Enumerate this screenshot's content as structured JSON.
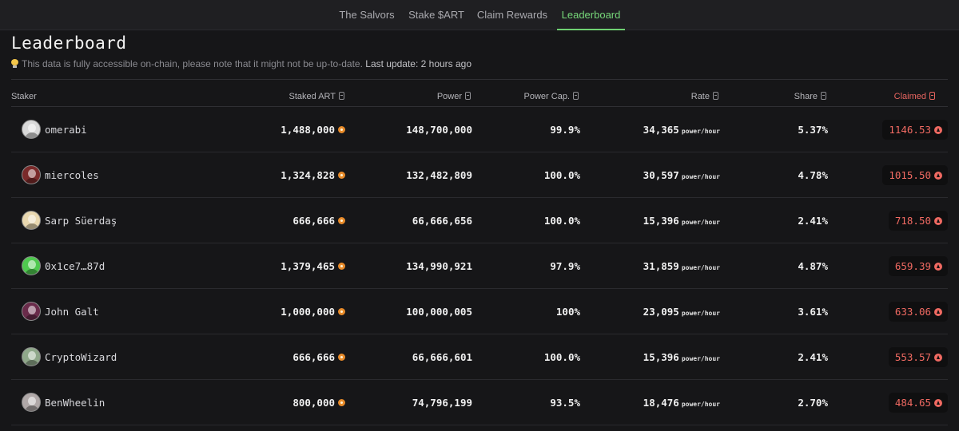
{
  "nav": {
    "tabs": [
      {
        "label": "The Salvors",
        "active": false
      },
      {
        "label": "Stake $ART",
        "active": false
      },
      {
        "label": "Claim Rewards",
        "active": false
      },
      {
        "label": "Leaderboard",
        "active": true
      }
    ]
  },
  "page": {
    "title": "Leaderboard",
    "notice": "This data is fully accessible on-chain, please note that it might not be up-to-date.",
    "last_update": "Last update: 2 hours ago"
  },
  "table": {
    "columns": {
      "staker": "Staker",
      "staked": "Staked ART",
      "power": "Power",
      "power_cap": "Power Cap.",
      "rate": "Rate",
      "share": "Share",
      "claimed": "Claimed"
    },
    "rate_unit": "power/hour",
    "rows": [
      {
        "staker": "omerabi",
        "staked": "1,488,000",
        "power": "148,700,000",
        "power_cap": "99.9%",
        "rate": "34,365",
        "share": "5.37%",
        "claimed": "1146.53",
        "avatar_color": "#d9d9d9"
      },
      {
        "staker": "miercoles",
        "staked": "1,324,828",
        "power": "132,482,809",
        "power_cap": "100.0%",
        "rate": "30,597",
        "share": "4.78%",
        "claimed": "1015.50",
        "avatar_color": "#7a2a2a"
      },
      {
        "staker": "Sarp Süerdaş",
        "staked": "666,666",
        "power": "66,666,656",
        "power_cap": "100.0%",
        "rate": "15,396",
        "share": "2.41%",
        "claimed": "718.50",
        "avatar_color": "#e9d8b0"
      },
      {
        "staker": "0x1ce7…87d",
        "staked": "1,379,465",
        "power": "134,990,921",
        "power_cap": "97.9%",
        "rate": "31,859",
        "share": "4.87%",
        "claimed": "659.39",
        "avatar_color": "#4fc94f"
      },
      {
        "staker": "John Galt",
        "staked": "1,000,000",
        "power": "100,000,005",
        "power_cap": "100%",
        "rate": "23,095",
        "share": "3.61%",
        "claimed": "633.06",
        "avatar_color": "#6a2b4a"
      },
      {
        "staker": "CryptoWizard",
        "staked": "666,666",
        "power": "66,666,601",
        "power_cap": "100.0%",
        "rate": "15,396",
        "share": "2.41%",
        "claimed": "553.57",
        "avatar_color": "#8fa88a"
      },
      {
        "staker": "BenWheelin",
        "staked": "800,000",
        "power": "74,796,199",
        "power_cap": "93.5%",
        "rate": "18,476",
        "share": "2.70%",
        "claimed": "484.65",
        "avatar_color": "#b0a8a8"
      }
    ]
  },
  "colors": {
    "accent_active_tab": "#77d97a",
    "claimed": "#f06a62",
    "coin": "#e88b2a"
  }
}
